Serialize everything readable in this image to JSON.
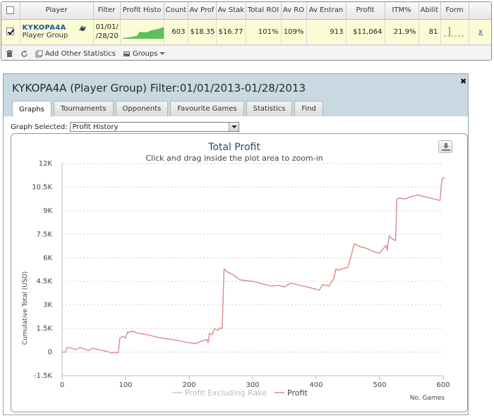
{
  "table": {
    "headers": [
      "Player",
      "Filter",
      "Profit Histo",
      "Count",
      "Av Prof",
      "Av Stak",
      "Total ROI",
      "Av RO",
      "Av Entran",
      "Profit",
      "ITM%",
      "Abilit",
      "Form"
    ],
    "row": {
      "checked": true,
      "player_name": "KYKOPA4A",
      "player_group": "Player Group",
      "filter_line1": "01/01/",
      "filter_line2": "/28/20",
      "count": "603",
      "av_profit": "$18.35",
      "av_stake": "$16.77",
      "total_roi": "101%",
      "av_roi": "109%",
      "av_entrants": "913",
      "profit": "$11,064",
      "itm": "21.9%",
      "ability": "81",
      "remove": "x"
    }
  },
  "toolbar": {
    "add_stats": "Add Other Statistics",
    "groups": "Groups"
  },
  "window": {
    "title": "KYKOPA4A (Player Group) Filter:01/01/2013-01/28/2013",
    "tabs": [
      {
        "label": "Graphs",
        "active": true
      },
      {
        "label": "Tournaments",
        "active": false
      },
      {
        "label": "Opponents",
        "active": false
      },
      {
        "label": "Favourite Games",
        "active": false
      },
      {
        "label": "Statistics",
        "active": false
      },
      {
        "label": "Find",
        "active": false
      }
    ],
    "graph_selected_label": "Graph Selected:",
    "graph_selected_value": "Profit History"
  },
  "chart_data": {
    "type": "line",
    "title": "Total Profit",
    "subtitle": "Click and drag inside the plot area to zoom-in",
    "ylabel": "Cumulative Total (USD)",
    "xlabel": "No. Games",
    "xlim": [
      0,
      600
    ],
    "ylim": [
      -1500,
      12000
    ],
    "x_ticks": [
      0,
      100,
      200,
      300,
      400,
      500,
      600
    ],
    "y_ticks": [
      -1500,
      0,
      1500,
      3000,
      4500,
      6000,
      7500,
      9000,
      10500,
      12000
    ],
    "y_tick_labels": [
      "-1.5K",
      "0",
      "1.5K",
      "3K",
      "4.5K",
      "6K",
      "7.5K",
      "9K",
      "10.5K",
      "12K"
    ],
    "grid": true,
    "legend_position": "bottom",
    "colors": {
      "profit": "#d98b8b",
      "profit_excl_rake": "#cccccc",
      "grid": "#cfcfcf"
    },
    "series": [
      {
        "name": "Profit Excluding Rake",
        "values": []
      },
      {
        "name": "Profit",
        "x": [
          0,
          5,
          8,
          15,
          22,
          28,
          35,
          42,
          48,
          55,
          62,
          70,
          78,
          82,
          88,
          90,
          91,
          96,
          100,
          103,
          106,
          110,
          120,
          135,
          150,
          165,
          180,
          200,
          210,
          220,
          228,
          230,
          232,
          236,
          240,
          245,
          250,
          252,
          255,
          257,
          260,
          270,
          280,
          300,
          320,
          330,
          340,
          350,
          360,
          370,
          380,
          390,
          400,
          405,
          410,
          420,
          425,
          428,
          431,
          435,
          440,
          450,
          455,
          460,
          470,
          480,
          490,
          500,
          510,
          512,
          515,
          520,
          525,
          527,
          530,
          540,
          550,
          560,
          570,
          580,
          590,
          595,
          597,
          598,
          600,
          603
        ],
        "values": [
          0,
          0,
          300,
          250,
          150,
          300,
          200,
          100,
          250,
          180,
          120,
          50,
          -60,
          0,
          -50,
          500,
          900,
          1000,
          900,
          1300,
          1250,
          1350,
          1200,
          1100,
          950,
          850,
          750,
          600,
          550,
          700,
          800,
          600,
          1200,
          1100,
          1500,
          1400,
          1550,
          1500,
          5300,
          5200,
          5100,
          4900,
          4600,
          4500,
          4300,
          4200,
          4250,
          4150,
          4400,
          4300,
          4200,
          4100,
          4000,
          3950,
          4300,
          4200,
          4500,
          4700,
          5300,
          5200,
          5300,
          5400,
          6100,
          6900,
          6700,
          6600,
          6400,
          6300,
          6800,
          6500,
          7400,
          7200,
          7100,
          9700,
          9800,
          9750,
          9900,
          10000,
          9900,
          9800,
          9700,
          9650,
          10600,
          11000,
          11100,
          11064
        ]
      }
    ]
  }
}
